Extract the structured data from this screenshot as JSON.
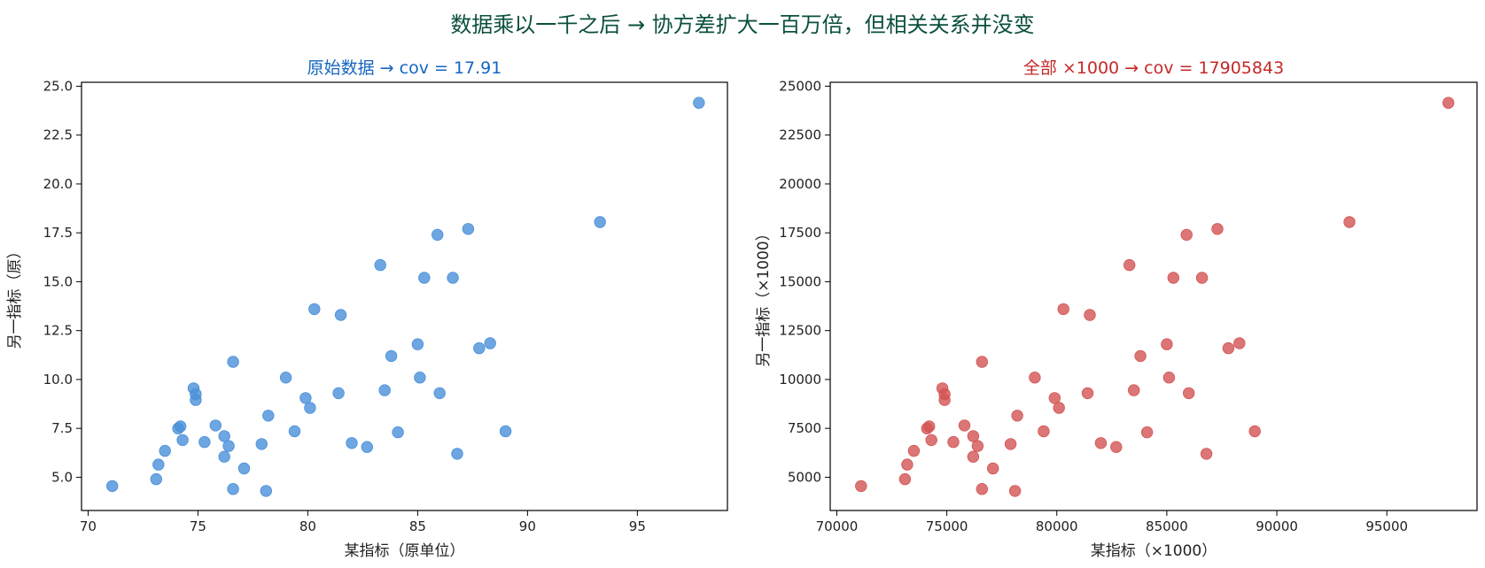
{
  "figure": {
    "suptitle": "数据乘以一千之后 → 协方差扩大一百万倍，但相关关系并没变"
  },
  "chart_data": [
    {
      "type": "scatter",
      "title": "原始数据 → cov = 17.91",
      "title_color": "#1565c0",
      "xlabel": "某指标（原单位）",
      "ylabel": "另一指标（原）",
      "point_color": "#4a90d9",
      "xlim": [
        69.7,
        99.1
      ],
      "ylim": [
        3.3,
        25.2
      ],
      "xticks": [
        70,
        75,
        80,
        85,
        90,
        95
      ],
      "yticks": [
        5.0,
        7.5,
        10.0,
        12.5,
        15.0,
        17.5,
        20.0,
        22.5,
        25.0
      ],
      "xtick_decimals": 0,
      "ytick_decimals": 1,
      "scale": 1,
      "points": [
        [
          71.1,
          4.55
        ],
        [
          73.1,
          4.9
        ],
        [
          73.2,
          5.65
        ],
        [
          73.5,
          6.35
        ],
        [
          74.1,
          7.5
        ],
        [
          74.2,
          7.6
        ],
        [
          74.3,
          6.9
        ],
        [
          74.8,
          9.55
        ],
        [
          74.9,
          9.25
        ],
        [
          74.9,
          8.95
        ],
        [
          75.3,
          6.8
        ],
        [
          75.8,
          7.65
        ],
        [
          76.2,
          6.05
        ],
        [
          76.2,
          7.1
        ],
        [
          76.4,
          6.6
        ],
        [
          76.6,
          4.4
        ],
        [
          76.6,
          10.9
        ],
        [
          77.1,
          5.45
        ],
        [
          77.9,
          6.7
        ],
        [
          78.1,
          4.3
        ],
        [
          78.2,
          8.15
        ],
        [
          79.0,
          10.1
        ],
        [
          79.4,
          7.35
        ],
        [
          79.9,
          9.05
        ],
        [
          80.1,
          8.55
        ],
        [
          80.3,
          13.6
        ],
        [
          81.4,
          9.3
        ],
        [
          81.5,
          13.3
        ],
        [
          82.0,
          6.75
        ],
        [
          82.7,
          6.55
        ],
        [
          83.3,
          15.85
        ],
        [
          83.5,
          9.45
        ],
        [
          83.8,
          11.2
        ],
        [
          84.1,
          7.3
        ],
        [
          85.0,
          11.8
        ],
        [
          85.1,
          10.1
        ],
        [
          85.3,
          15.2
        ],
        [
          85.9,
          17.4
        ],
        [
          86.0,
          9.3
        ],
        [
          86.6,
          15.2
        ],
        [
          86.8,
          6.2
        ],
        [
          87.3,
          17.7
        ],
        [
          87.8,
          11.6
        ],
        [
          88.3,
          11.85
        ],
        [
          89.0,
          7.35
        ],
        [
          93.3,
          18.05
        ],
        [
          97.8,
          24.15
        ]
      ]
    },
    {
      "type": "scatter",
      "title": "全部 ×1000 → cov = 17905843",
      "title_color": "#c62828",
      "xlabel": "某指标（×1000）",
      "ylabel": "另一指标（×1000）",
      "point_color": "#d35454",
      "xlim": [
        69700,
        99100
      ],
      "ylim": [
        3300,
        25200
      ],
      "xticks": [
        70000,
        75000,
        80000,
        85000,
        90000,
        95000
      ],
      "yticks": [
        5000,
        7500,
        10000,
        12500,
        15000,
        17500,
        20000,
        22500,
        25000
      ],
      "xtick_decimals": 0,
      "ytick_decimals": 0,
      "scale": 1000,
      "points_note": "same points as panel 1 multiplied by scale"
    }
  ]
}
